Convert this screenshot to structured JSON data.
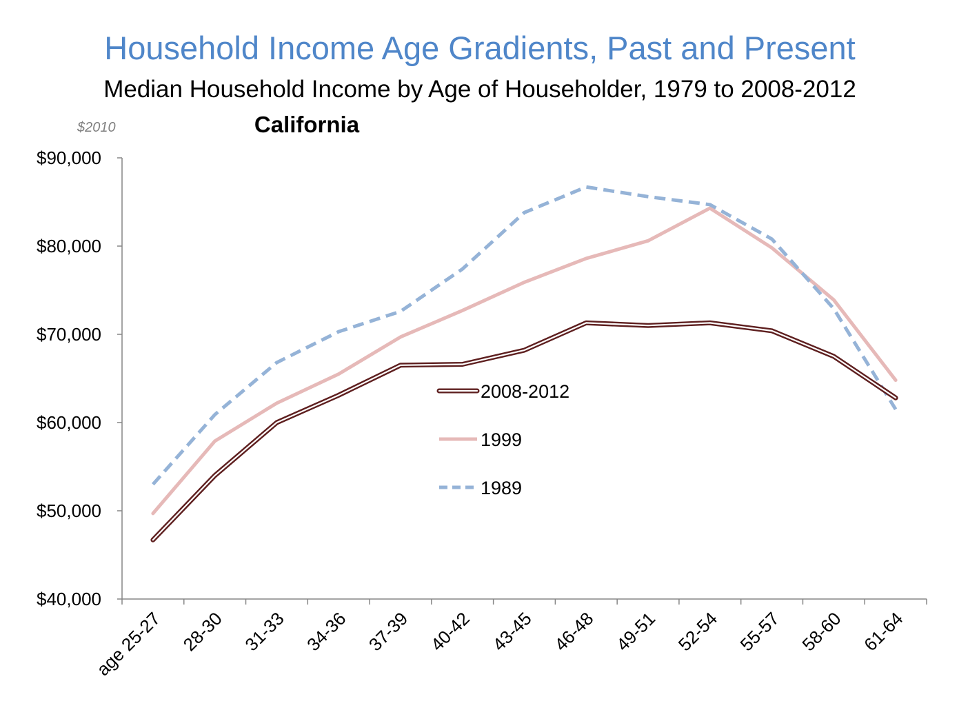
{
  "title": "Household Income Age Gradients, Past and Present",
  "subtitle": "Median Household Income by Age of Householder, 1979 to 2008-2012",
  "region": "California",
  "units_note": "$2010",
  "chart_data": {
    "type": "line",
    "title": "Household Income Age Gradients, Past and Present",
    "subtitle": "Median Household Income by Age of Householder, 1979 to 2008-2012",
    "categories": [
      "age 25-27",
      "28-30",
      "31-33",
      "34-36",
      "37-39",
      "40-42",
      "43-45",
      "46-48",
      "49-51",
      "52-54",
      "55-57",
      "58-60",
      "61-64"
    ],
    "ylim": [
      40000,
      90000
    ],
    "yticks": [
      40000,
      50000,
      60000,
      70000,
      80000,
      90000
    ],
    "ytick_labels": [
      "$40,000",
      "$50,000",
      "$60,000",
      "$70,000",
      "$80,000",
      "$90,000"
    ],
    "grid": false,
    "legend_position": "center",
    "series": [
      {
        "name": "2008-2012",
        "color": "#5e1f1f",
        "style": "double",
        "values": [
          46700,
          54000,
          60000,
          63100,
          66500,
          66600,
          68200,
          71300,
          71000,
          71300,
          70400,
          67500,
          62800
        ]
      },
      {
        "name": "1999",
        "color": "#e6b9b8",
        "style": "solid",
        "values": [
          49700,
          57900,
          62200,
          65500,
          69700,
          72700,
          75900,
          78600,
          80600,
          84300,
          79800,
          73900,
          64800
        ]
      },
      {
        "name": "1989",
        "color": "#95b3d7",
        "style": "dashed",
        "values": [
          53000,
          60900,
          66800,
          70300,
          72600,
          77400,
          83800,
          86700,
          85600,
          84700,
          80800,
          72900,
          61500
        ]
      }
    ]
  }
}
